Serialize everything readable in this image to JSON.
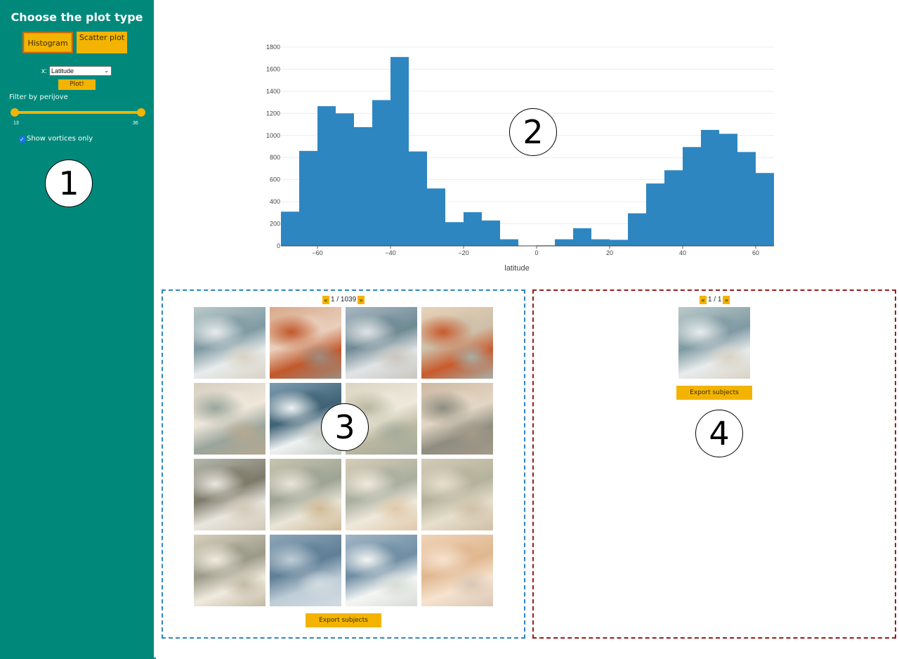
{
  "sidebar": {
    "title": "Choose the plot type",
    "histogram_label": "Histogram",
    "scatter_label": "Scatter plot",
    "x_label": "x:",
    "x_selected": "Latitude",
    "plot_label": "Plot!",
    "filter_label": "Filter by perijove",
    "slider_min": "13",
    "slider_max": "36",
    "slider_range_fraction": [
      0.0,
      1.0
    ],
    "vortices_label": "Show vortices only",
    "vortices_checked": true,
    "colors": {
      "background": "#00897b",
      "accent": "#f2b400"
    }
  },
  "annotations": {
    "one": "1",
    "two": "2",
    "three": "3",
    "four": "4"
  },
  "chart_data": {
    "type": "bar",
    "title": "",
    "xlabel": "latitude",
    "ylabel": "",
    "bin_edges": [
      -70,
      -65,
      -60,
      -55,
      -50,
      -45,
      -40,
      -35,
      -30,
      -25,
      -20,
      -15,
      -10,
      -5,
      0,
      5,
      10,
      15,
      20,
      25,
      30,
      35,
      40,
      45,
      50,
      55,
      60,
      65
    ],
    "values": [
      310,
      860,
      1265,
      1200,
      1075,
      1320,
      1710,
      855,
      520,
      215,
      305,
      230,
      60,
      0,
      5,
      60,
      160,
      60,
      55,
      295,
      565,
      685,
      895,
      1050,
      1015,
      850,
      660
    ],
    "xlim": [
      -70,
      65
    ],
    "ylim": [
      0,
      1800
    ],
    "x_ticks": [
      -60,
      -40,
      -20,
      0,
      20,
      40,
      60
    ],
    "x_tick_labels": [
      "−60",
      "−40",
      "−20",
      "0",
      "20",
      "40",
      "60"
    ],
    "y_ticks": [
      0,
      200,
      400,
      600,
      800,
      1000,
      1200,
      1400,
      1600,
      1800
    ],
    "y_tick_labels": [
      "0",
      "200",
      "400",
      "600",
      "800",
      "1000",
      "1200",
      "1400",
      "1600",
      "1800"
    ],
    "grid": true,
    "bar_color": "#2e86c1"
  },
  "gallery_left": {
    "pager_prev": "«",
    "pager_text": "1 / 1039",
    "pager_next": "»",
    "export_label": "Export subjects",
    "border_color": "#2e86c1"
  },
  "gallery_right": {
    "pager_prev": "«",
    "pager_text": "1 / 1",
    "pager_next": "»",
    "export_label": "Export subjects",
    "border_color": "#9b1c1c"
  }
}
